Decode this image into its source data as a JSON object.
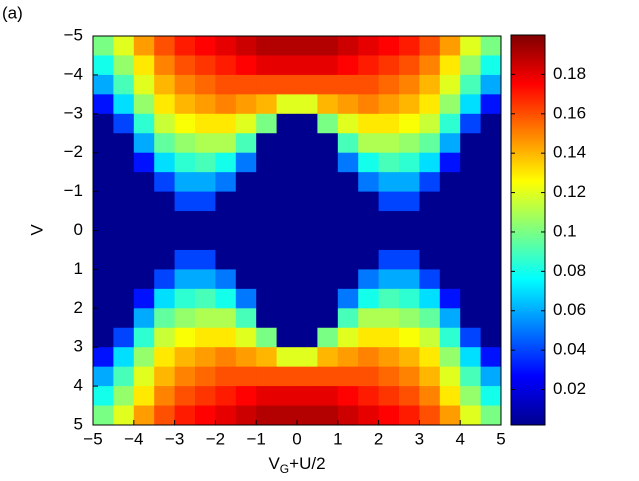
{
  "chart_data": {
    "type": "heatmap",
    "panel_label": "(a)",
    "xlabel": [
      "V",
      "G",
      "+U/2"
    ],
    "ylabel": "V",
    "xlim": [
      -5,
      5
    ],
    "ylim": [
      -5,
      5
    ],
    "y_reversed": true,
    "xticks": [
      {
        "value": -5,
        "label": "−5"
      },
      {
        "value": -4,
        "label": "−4"
      },
      {
        "value": -3,
        "label": "−3"
      },
      {
        "value": -2,
        "label": "−2"
      },
      {
        "value": -1,
        "label": "−1"
      },
      0,
      1,
      2,
      3,
      4,
      5
    ],
    "yticks": [
      {
        "value": -5,
        "label": "−5"
      },
      {
        "value": -4,
        "label": "−4"
      },
      {
        "value": -3,
        "label": "−3"
      },
      {
        "value": -2,
        "label": "−2"
      },
      {
        "value": -1,
        "label": "−1"
      },
      0,
      1,
      2,
      3,
      4,
      5
    ],
    "colormap": "jet",
    "clim": [
      0.002,
      0.2
    ],
    "cticks": [
      0.02,
      0.04,
      0.06,
      0.08,
      0.1,
      0.12,
      0.14,
      0.16,
      0.18
    ],
    "x": [
      -4.75,
      -4.25,
      -3.75,
      -3.25,
      -2.75,
      -2.25,
      -1.75,
      -1.25,
      -0.75,
      -0.25,
      0.25,
      0.75,
      1.25,
      1.75,
      2.25,
      2.75,
      3.25,
      3.75,
      4.25,
      4.75
    ],
    "y": [
      -4.75,
      -4.25,
      -3.75,
      -3.25,
      -2.75,
      -2.25,
      -1.75,
      -1.25,
      -0.75,
      -0.25,
      0.25,
      0.75,
      1.25,
      1.75,
      2.25,
      2.75,
      3.25,
      3.75,
      4.25,
      4.75
    ],
    "z": [
      [
        0.1,
        0.12,
        0.145,
        0.16,
        0.17,
        0.175,
        0.18,
        0.185,
        0.19,
        0.19,
        0.19,
        0.19,
        0.185,
        0.18,
        0.175,
        0.17,
        0.16,
        0.145,
        0.12,
        0.1
      ],
      [
        0.08,
        0.105,
        0.13,
        0.15,
        0.16,
        0.165,
        0.17,
        0.175,
        0.18,
        0.18,
        0.18,
        0.18,
        0.175,
        0.17,
        0.165,
        0.16,
        0.15,
        0.13,
        0.105,
        0.08
      ],
      [
        0.06,
        0.09,
        0.12,
        0.14,
        0.15,
        0.155,
        0.16,
        0.16,
        0.16,
        0.16,
        0.16,
        0.16,
        0.16,
        0.16,
        0.155,
        0.15,
        0.14,
        0.12,
        0.09,
        0.06
      ],
      [
        0.03,
        0.07,
        0.105,
        0.13,
        0.14,
        0.145,
        0.15,
        0.145,
        0.14,
        0.12,
        0.12,
        0.14,
        0.145,
        0.15,
        0.145,
        0.14,
        0.13,
        0.105,
        0.07,
        0.03
      ],
      [
        0.005,
        0.04,
        0.085,
        0.115,
        0.125,
        0.13,
        0.13,
        0.12,
        0.1,
        0.005,
        0.005,
        0.1,
        0.12,
        0.13,
        0.13,
        0.125,
        0.115,
        0.085,
        0.04,
        0.005
      ],
      [
        0.005,
        0.005,
        0.06,
        0.095,
        0.105,
        0.11,
        0.11,
        0.09,
        0.005,
        0.005,
        0.005,
        0.005,
        0.09,
        0.11,
        0.11,
        0.105,
        0.095,
        0.06,
        0.005,
        0.005
      ],
      [
        0.005,
        0.005,
        0.03,
        0.07,
        0.085,
        0.09,
        0.08,
        0.05,
        0.005,
        0.005,
        0.005,
        0.005,
        0.05,
        0.08,
        0.09,
        0.085,
        0.07,
        0.03,
        0.005,
        0.005
      ],
      [
        0.005,
        0.005,
        0.005,
        0.04,
        0.06,
        0.06,
        0.05,
        0.005,
        0.005,
        0.005,
        0.005,
        0.005,
        0.005,
        0.05,
        0.06,
        0.06,
        0.04,
        0.005,
        0.005,
        0.005
      ],
      [
        0.005,
        0.005,
        0.005,
        0.005,
        0.04,
        0.04,
        0.005,
        0.005,
        0.005,
        0.005,
        0.005,
        0.005,
        0.005,
        0.005,
        0.04,
        0.04,
        0.005,
        0.005,
        0.005,
        0.005
      ],
      [
        0.005,
        0.005,
        0.005,
        0.005,
        0.005,
        0.005,
        0.005,
        0.005,
        0.005,
        0.005,
        0.005,
        0.005,
        0.005,
        0.005,
        0.005,
        0.005,
        0.005,
        0.005,
        0.005,
        0.005
      ],
      [
        0.005,
        0.005,
        0.005,
        0.005,
        0.005,
        0.005,
        0.005,
        0.005,
        0.005,
        0.005,
        0.005,
        0.005,
        0.005,
        0.005,
        0.005,
        0.005,
        0.005,
        0.005,
        0.005,
        0.005
      ],
      [
        0.005,
        0.005,
        0.005,
        0.005,
        0.04,
        0.04,
        0.005,
        0.005,
        0.005,
        0.005,
        0.005,
        0.005,
        0.005,
        0.005,
        0.04,
        0.04,
        0.005,
        0.005,
        0.005,
        0.005
      ],
      [
        0.005,
        0.005,
        0.005,
        0.04,
        0.06,
        0.06,
        0.05,
        0.005,
        0.005,
        0.005,
        0.005,
        0.005,
        0.005,
        0.05,
        0.06,
        0.06,
        0.04,
        0.005,
        0.005,
        0.005
      ],
      [
        0.005,
        0.005,
        0.03,
        0.07,
        0.085,
        0.09,
        0.08,
        0.05,
        0.005,
        0.005,
        0.005,
        0.005,
        0.05,
        0.08,
        0.09,
        0.085,
        0.07,
        0.03,
        0.005,
        0.005
      ],
      [
        0.005,
        0.005,
        0.06,
        0.095,
        0.105,
        0.11,
        0.11,
        0.09,
        0.005,
        0.005,
        0.005,
        0.005,
        0.09,
        0.11,
        0.11,
        0.105,
        0.095,
        0.06,
        0.005,
        0.005
      ],
      [
        0.005,
        0.04,
        0.085,
        0.115,
        0.125,
        0.13,
        0.13,
        0.12,
        0.1,
        0.005,
        0.005,
        0.1,
        0.12,
        0.13,
        0.13,
        0.125,
        0.115,
        0.085,
        0.04,
        0.005
      ],
      [
        0.03,
        0.07,
        0.105,
        0.13,
        0.14,
        0.145,
        0.15,
        0.145,
        0.14,
        0.12,
        0.12,
        0.14,
        0.145,
        0.15,
        0.145,
        0.14,
        0.13,
        0.105,
        0.07,
        0.03
      ],
      [
        0.06,
        0.09,
        0.12,
        0.14,
        0.15,
        0.155,
        0.16,
        0.16,
        0.16,
        0.16,
        0.16,
        0.16,
        0.16,
        0.16,
        0.155,
        0.15,
        0.14,
        0.12,
        0.09,
        0.06
      ],
      [
        0.08,
        0.105,
        0.13,
        0.15,
        0.16,
        0.165,
        0.17,
        0.175,
        0.18,
        0.18,
        0.18,
        0.18,
        0.175,
        0.17,
        0.165,
        0.16,
        0.15,
        0.13,
        0.105,
        0.08
      ],
      [
        0.1,
        0.12,
        0.145,
        0.16,
        0.17,
        0.175,
        0.18,
        0.185,
        0.19,
        0.19,
        0.19,
        0.19,
        0.185,
        0.18,
        0.175,
        0.17,
        0.16,
        0.145,
        0.12,
        0.1
      ]
    ]
  }
}
